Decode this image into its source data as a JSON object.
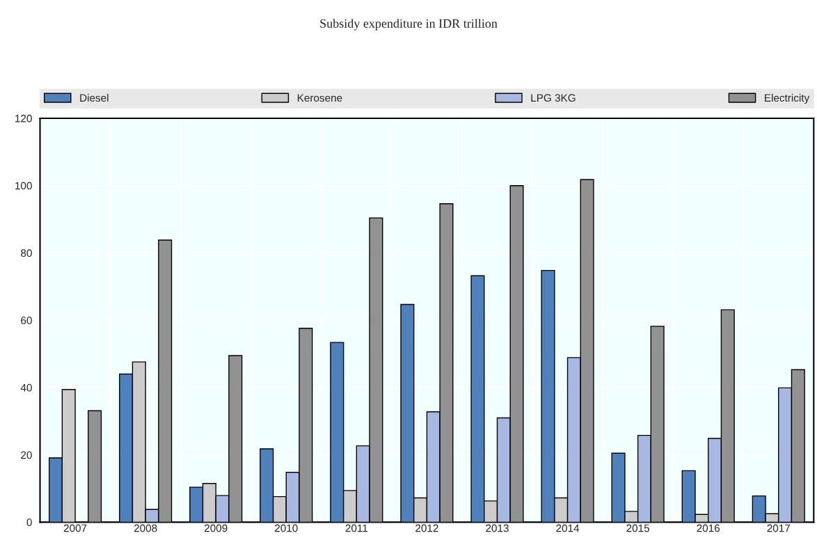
{
  "chart_data": {
    "type": "bar",
    "title": "Subsidy expenditure in IDR trillion",
    "categories": [
      "2007",
      "2008",
      "2009",
      "2010",
      "2011",
      "2012",
      "2013",
      "2014",
      "2015",
      "2016",
      "2017"
    ],
    "series": [
      {
        "name": "Diesel",
        "color": "#4f81bd",
        "values": [
          19.1,
          44.0,
          10.4,
          21.8,
          53.4,
          64.7,
          73.2,
          74.8,
          20.5,
          15.3,
          7.8
        ]
      },
      {
        "name": "Kerosene",
        "color": "#cccccc",
        "values": [
          39.4,
          47.6,
          11.5,
          7.6,
          9.4,
          7.2,
          6.3,
          7.2,
          3.2,
          2.3,
          2.5
        ]
      },
      {
        "name": "LPG 3KG",
        "color": "#a7b9e3",
        "values": [
          null,
          3.8,
          7.9,
          14.8,
          22.7,
          32.8,
          31.0,
          48.9,
          25.8,
          24.9,
          39.9
        ]
      },
      {
        "name": "Electricity",
        "color": "#929292",
        "values": [
          33.1,
          83.8,
          49.5,
          57.6,
          90.4,
          94.6,
          100.0,
          101.8,
          58.2,
          63.1,
          45.3
        ]
      }
    ],
    "ylim": [
      0,
      120
    ],
    "yticks": [
      0,
      20,
      40,
      60,
      80,
      100,
      120
    ],
    "grid": true,
    "legend": "top"
  }
}
